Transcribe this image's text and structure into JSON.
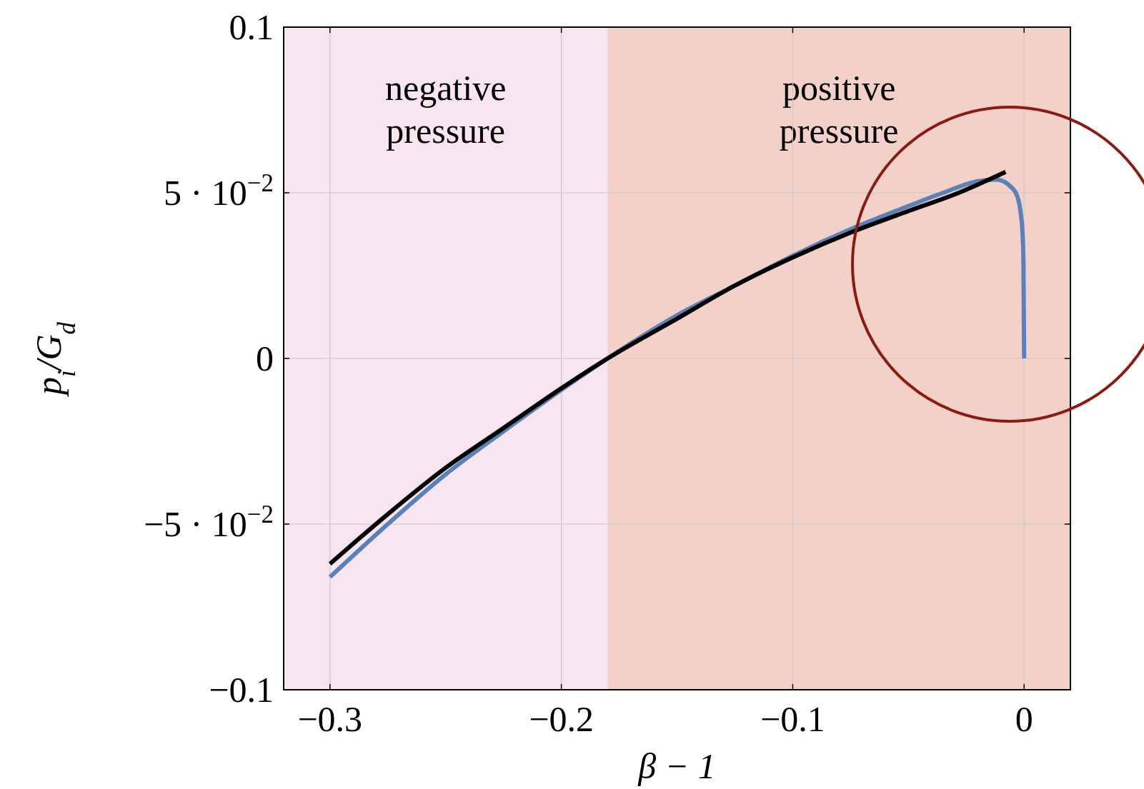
{
  "chart_data": {
    "type": "line",
    "xlabel": "β − 1",
    "ylabel": "p$_{i}$/G$_{d}$",
    "xlim": [
      -0.32,
      0.02
    ],
    "ylim": [
      -0.1,
      0.1
    ],
    "xticks": [
      {
        "value": -0.3,
        "label": "−0.3"
      },
      {
        "value": -0.2,
        "label": "−0.2"
      },
      {
        "value": -0.1,
        "label": "−0.1"
      },
      0
    ],
    "yticks": [
      {
        "value": -0.1,
        "label": "−0.1"
      },
      {
        "value": -0.05,
        "label": "−5 · 10$^{−2}$"
      },
      0,
      {
        "value": 0.05,
        "label": "5 · 10$^{−2}$"
      },
      0.1
    ],
    "grid": true,
    "line_style": "solid",
    "marker": "none",
    "bands": [
      {
        "axis": "x",
        "from": -0.32,
        "to": -0.18,
        "label": "negative pressure",
        "color": "#f7e6f0"
      },
      {
        "axis": "x",
        "from": -0.18,
        "to": 0.02,
        "label": "positive pressure",
        "color": "#f3d1c8"
      }
    ],
    "series": [
      {
        "color": "#5b82b8",
        "x": [
          -0.3,
          -0.275,
          -0.25,
          -0.225,
          -0.2,
          -0.18,
          -0.15,
          -0.125,
          -0.1,
          -0.075,
          -0.05,
          -0.035,
          -0.02,
          -0.012,
          -0.006,
          -0.003,
          -0.0015,
          -0.0007,
          -0.0003,
          0
        ],
        "values": [
          -0.066,
          -0.05,
          -0.035,
          -0.022,
          -0.0095,
          0,
          0.013,
          0.022,
          0.031,
          0.039,
          0.046,
          0.05,
          0.0535,
          0.054,
          0.052,
          0.049,
          0.044,
          0.038,
          0.03,
          0
        ]
      },
      {
        "color": "#000000",
        "x": [
          -0.3,
          -0.275,
          -0.25,
          -0.225,
          -0.2,
          -0.18,
          -0.15,
          -0.125,
          -0.1,
          -0.075,
          -0.05,
          -0.03,
          -0.008
        ],
        "values": [
          -0.062,
          -0.047,
          -0.033,
          -0.021,
          -0.009,
          0,
          0.012,
          0.022,
          0.0305,
          0.038,
          0.0445,
          0.0495,
          0.0563
        ]
      }
    ]
  }
}
